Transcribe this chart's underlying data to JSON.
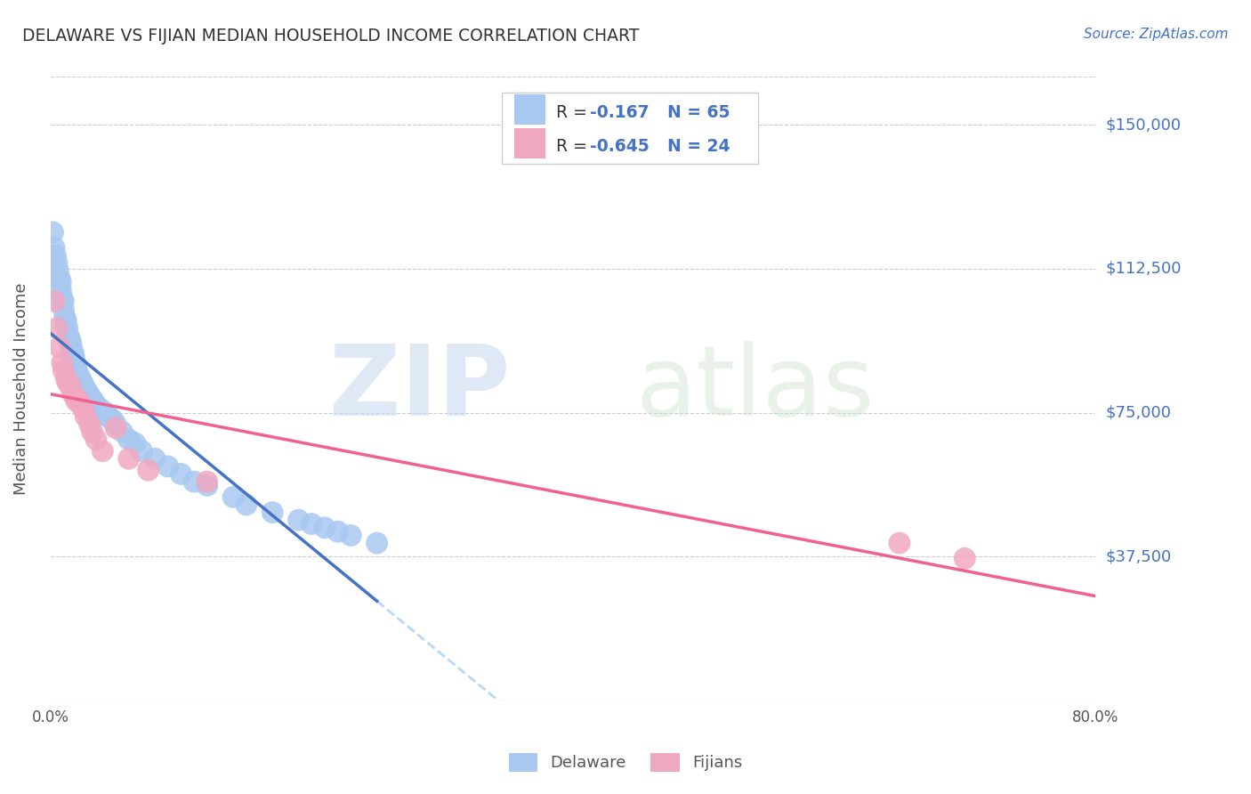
{
  "title": "DELAWARE VS FIJIAN MEDIAN HOUSEHOLD INCOME CORRELATION CHART",
  "source": "Source: ZipAtlas.com",
  "ylabel": "Median Household Income",
  "xlim": [
    0.0,
    0.8
  ],
  "ylim": [
    0,
    162500
  ],
  "yticks": [
    37500,
    75000,
    112500,
    150000
  ],
  "ytick_labels": [
    "$37,500",
    "$75,000",
    "$112,500",
    "$150,000"
  ],
  "xticks": [
    0.0,
    0.1,
    0.2,
    0.3,
    0.4,
    0.5,
    0.6,
    0.7,
    0.8
  ],
  "xtick_labels": [
    "0.0%",
    "",
    "",
    "",
    "",
    "",
    "",
    "",
    "80.0%"
  ],
  "delaware_color": "#a8c8f0",
  "fijian_color": "#f0a8c0",
  "delaware_line_color": "#4472c4",
  "fijian_line_color": "#f06090",
  "dashed_line_color": "#b8d8f8",
  "legend_r_del": "R = ",
  "legend_rv_del": "-0.167",
  "legend_n_del": "N = 65",
  "legend_r_fij": "R = ",
  "legend_rv_fij": "-0.645",
  "legend_n_fij": "N = 24",
  "watermark_zip": "ZIP",
  "watermark_atlas": "atlas",
  "grid_color": "#cccccc",
  "del_x": [
    0.002,
    0.003,
    0.004,
    0.005,
    0.006,
    0.007,
    0.008,
    0.008,
    0.009,
    0.01,
    0.01,
    0.011,
    0.012,
    0.012,
    0.013,
    0.014,
    0.015,
    0.016,
    0.016,
    0.017,
    0.018,
    0.018,
    0.019,
    0.02,
    0.02,
    0.021,
    0.022,
    0.023,
    0.024,
    0.025,
    0.025,
    0.026,
    0.027,
    0.028,
    0.029,
    0.03,
    0.032,
    0.033,
    0.035,
    0.036,
    0.038,
    0.04,
    0.042,
    0.044,
    0.046,
    0.048,
    0.05,
    0.055,
    0.06,
    0.065,
    0.07,
    0.08,
    0.09,
    0.1,
    0.11,
    0.12,
    0.14,
    0.15,
    0.17,
    0.19,
    0.2,
    0.21,
    0.22,
    0.23,
    0.25
  ],
  "del_y": [
    122000,
    118000,
    116000,
    114000,
    112000,
    110000,
    109000,
    107000,
    105000,
    104000,
    102000,
    100000,
    99000,
    98000,
    97000,
    95000,
    94000,
    93000,
    92000,
    91000,
    90000,
    89000,
    88000,
    87000,
    86000,
    85000,
    84500,
    84000,
    83000,
    82500,
    82000,
    81500,
    81000,
    80500,
    80000,
    79500,
    78500,
    78000,
    77000,
    76500,
    76000,
    75500,
    75000,
    74000,
    73500,
    73000,
    72000,
    70000,
    68000,
    67000,
    65000,
    63000,
    61000,
    59000,
    57000,
    56000,
    53000,
    51000,
    49000,
    47000,
    46000,
    45000,
    44000,
    43000,
    41000
  ],
  "fij_x": [
    0.003,
    0.005,
    0.007,
    0.009,
    0.01,
    0.012,
    0.013,
    0.015,
    0.017,
    0.019,
    0.02,
    0.022,
    0.025,
    0.027,
    0.03,
    0.032,
    0.035,
    0.04,
    0.05,
    0.06,
    0.075,
    0.12,
    0.65,
    0.7
  ],
  "fij_y": [
    104000,
    97000,
    92000,
    88000,
    86000,
    84000,
    83000,
    82000,
    80000,
    79000,
    78000,
    78000,
    76000,
    74000,
    72000,
    70000,
    68000,
    65000,
    71000,
    63000,
    60000,
    57000,
    41000,
    37000
  ]
}
